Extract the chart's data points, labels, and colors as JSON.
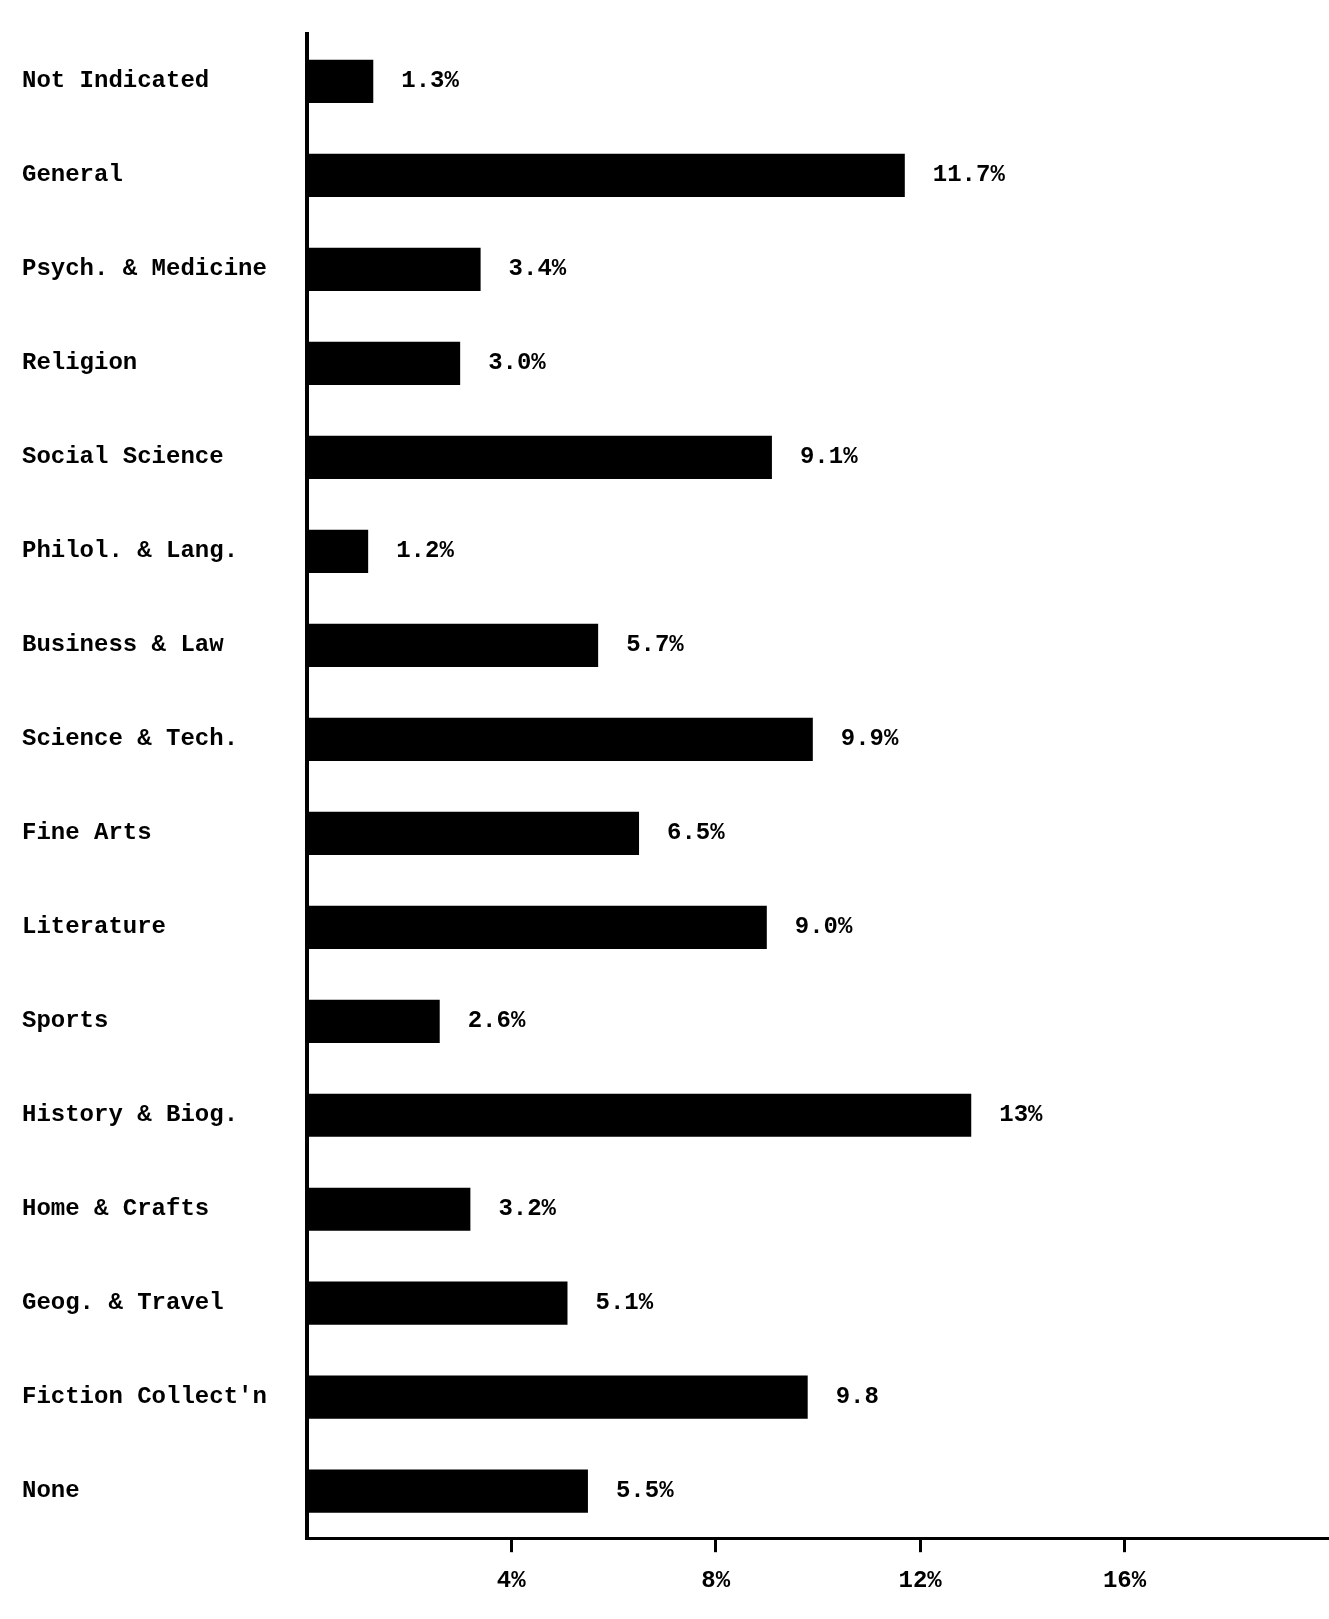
{
  "chart_data": {
    "type": "bar",
    "orientation": "horizontal",
    "categories": [
      "Not Indicated",
      "General",
      "Psych. & Medicine",
      "Religion",
      "Social Science",
      "Philol. & Lang.",
      "Business & Law",
      "Science & Tech.",
      "Fine Arts",
      "Literature",
      "Sports",
      "History & Biog.",
      "Home & Crafts",
      "Geog. & Travel",
      "Fiction Collect'n",
      "None"
    ],
    "values": [
      1.3,
      11.7,
      3.4,
      3.0,
      9.1,
      1.2,
      5.7,
      9.9,
      6.5,
      9.0,
      2.6,
      13,
      3.2,
      5.1,
      9.8,
      5.5
    ],
    "value_labels": [
      "1.3%",
      "11.7%",
      "3.4%",
      "3.0%",
      "9.1%",
      "1.2%",
      "5.7%",
      "9.9%",
      "6.5%",
      "9.0%",
      "2.6%",
      "13%",
      "3.2%",
      "5.1%",
      "9.8",
      "5.5%"
    ],
    "color": "#000000",
    "xlim": [
      0,
      20
    ],
    "xticks": [
      {
        "value": 4,
        "label": "4%"
      },
      {
        "value": 8,
        "label": "8%"
      },
      {
        "value": 12,
        "label": "12%"
      },
      {
        "value": 16,
        "label": "16%"
      }
    ],
    "grid": false,
    "legend": false
  }
}
